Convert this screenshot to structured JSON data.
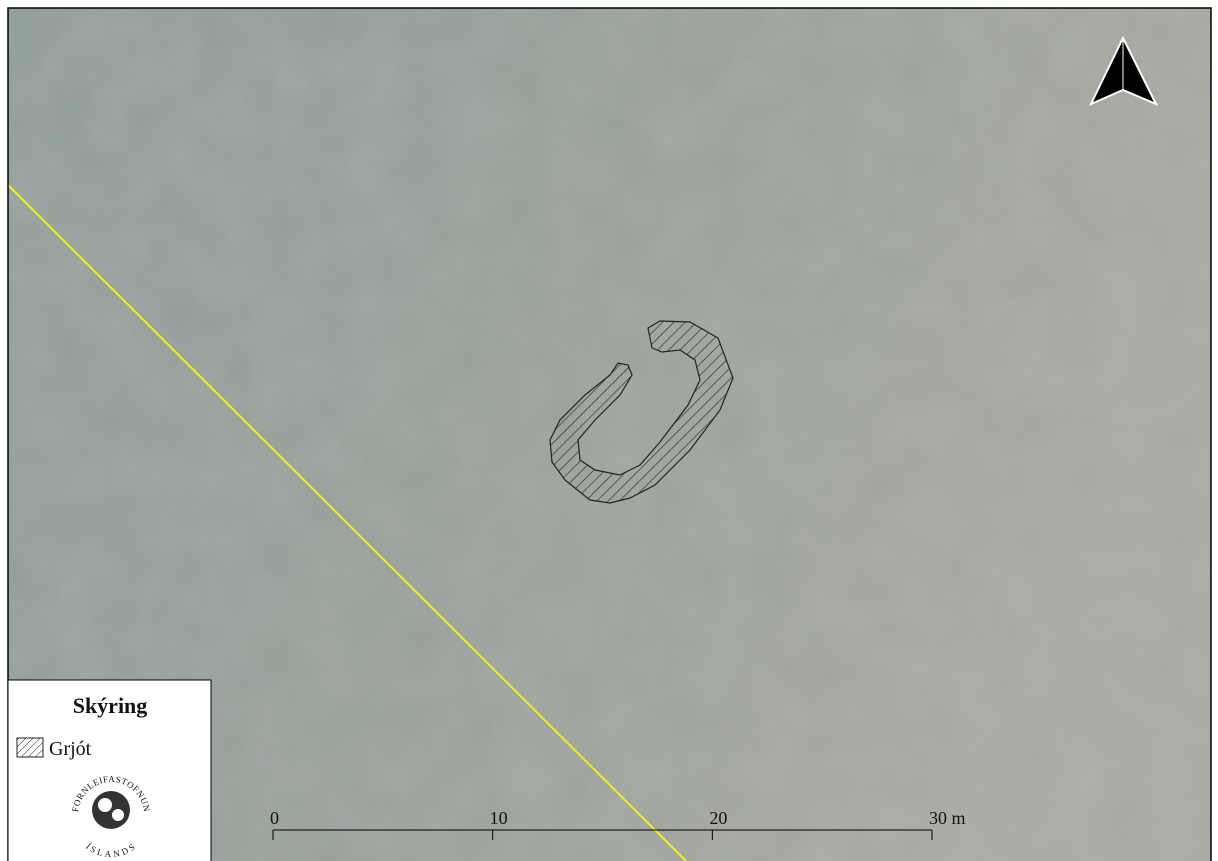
{
  "legend": {
    "title": "Skýring",
    "items": [
      "Grjót"
    ]
  },
  "logo": {
    "top": "FORNLEIFASTOFNUN",
    "bottom": "ÍSLANDS"
  },
  "scale_bar": {
    "xlim": [
      0,
      30
    ],
    "xticks": [
      0,
      10,
      20,
      {
        "value": 30,
        "label": "30 m"
      }
    ]
  }
}
